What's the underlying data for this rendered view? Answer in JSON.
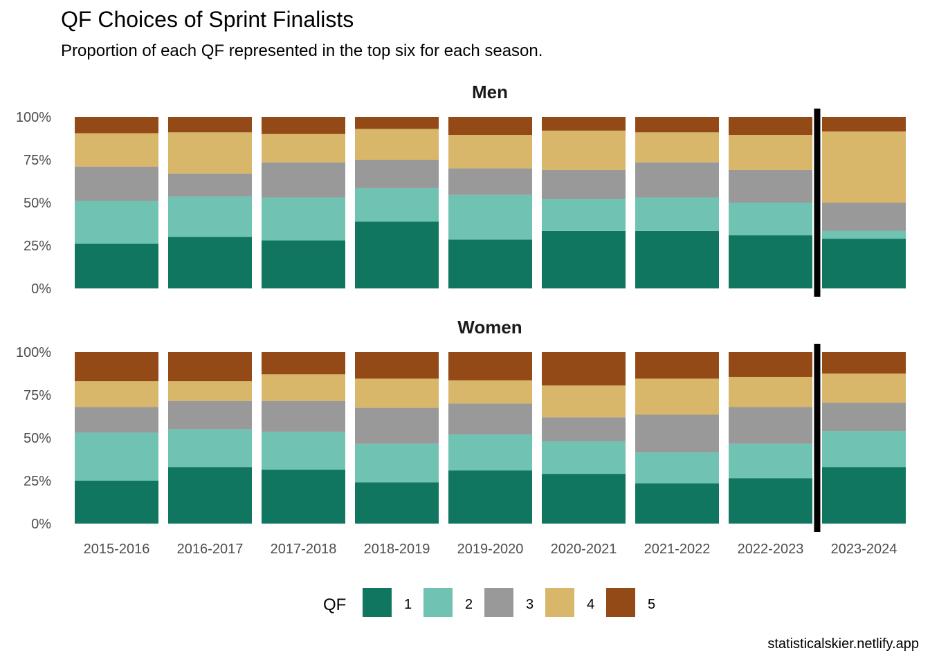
{
  "title": "QF Choices of Sprint Finalists",
  "subtitle": "Proportion of each QF represented in the top six for each season.",
  "caption": "statisticalskier.netlify.app",
  "chart_data": {
    "type": "bar",
    "stacked": true,
    "normalized": true,
    "categories": [
      "2015-2016",
      "2016-2017",
      "2017-2018",
      "2018-2019",
      "2019-2020",
      "2020-2021",
      "2021-2022",
      "2022-2023",
      "2023-2024"
    ],
    "yticks": [
      "0%",
      "25%",
      "50%",
      "75%",
      "100%"
    ],
    "ylim": [
      0,
      1
    ],
    "separator_after": "2022-2023",
    "legend": {
      "title": "QF",
      "position": "bottom",
      "entries": [
        "1",
        "2",
        "3",
        "4",
        "5"
      ]
    },
    "colors": {
      "1": "#11765f",
      "2": "#70c3b2",
      "3": "#999999",
      "4": "#d8b66a",
      "5": "#934a16"
    },
    "panels": [
      {
        "name": "Men",
        "series": [
          {
            "name": "1",
            "values": [
              0.26,
              0.3,
              0.28,
              0.39,
              0.285,
              0.335,
              0.335,
              0.31,
              0.29
            ]
          },
          {
            "name": "2",
            "values": [
              0.25,
              0.235,
              0.25,
              0.195,
              0.26,
              0.185,
              0.195,
              0.19,
              0.045
            ]
          },
          {
            "name": "3",
            "values": [
              0.2,
              0.135,
              0.205,
              0.165,
              0.155,
              0.17,
              0.205,
              0.19,
              0.165
            ]
          },
          {
            "name": "4",
            "values": [
              0.195,
              0.24,
              0.165,
              0.18,
              0.195,
              0.23,
              0.175,
              0.205,
              0.415
            ]
          },
          {
            "name": "5",
            "values": [
              0.095,
              0.09,
              0.1,
              0.07,
              0.105,
              0.08,
              0.09,
              0.105,
              0.085
            ]
          }
        ]
      },
      {
        "name": "Women",
        "series": [
          {
            "name": "1",
            "values": [
              0.25,
              0.33,
              0.315,
              0.24,
              0.31,
              0.29,
              0.235,
              0.265,
              0.33
            ]
          },
          {
            "name": "2",
            "values": [
              0.28,
              0.22,
              0.22,
              0.225,
              0.21,
              0.19,
              0.18,
              0.2,
              0.21
            ]
          },
          {
            "name": "3",
            "values": [
              0.15,
              0.165,
              0.18,
              0.21,
              0.18,
              0.14,
              0.22,
              0.215,
              0.165
            ]
          },
          {
            "name": "4",
            "values": [
              0.15,
              0.115,
              0.155,
              0.17,
              0.135,
              0.185,
              0.21,
              0.175,
              0.17
            ]
          },
          {
            "name": "5",
            "values": [
              0.17,
              0.17,
              0.13,
              0.155,
              0.165,
              0.195,
              0.155,
              0.145,
              0.125
            ]
          }
        ]
      }
    ]
  }
}
